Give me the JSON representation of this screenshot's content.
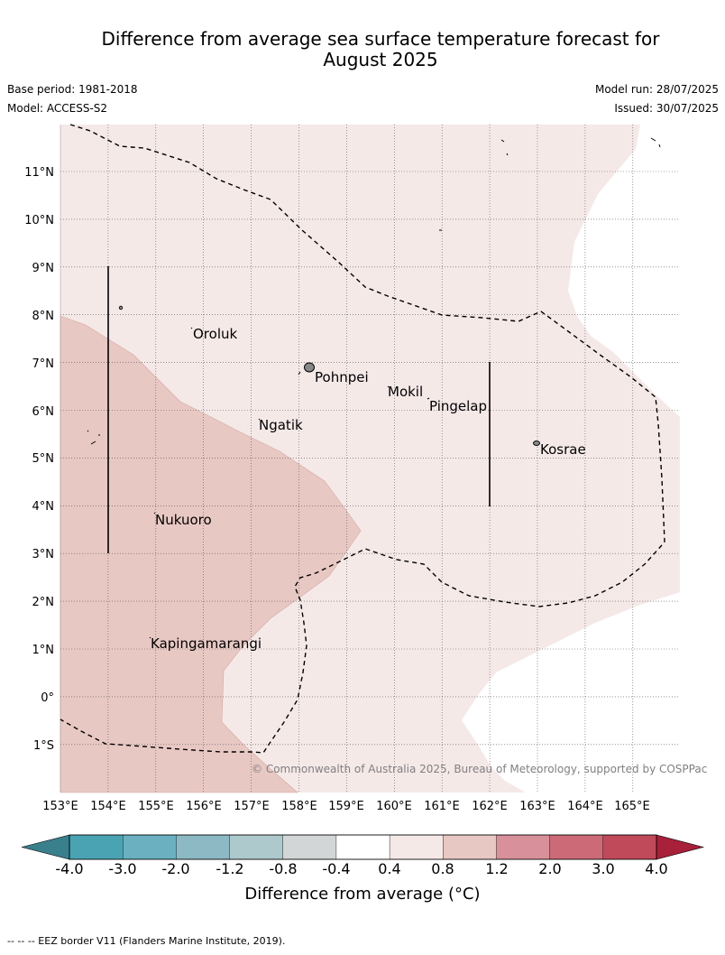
{
  "title": {
    "line1": "Difference from average sea surface temperature forecast for",
    "line2": "August 2025"
  },
  "meta": {
    "base_period": "Base period: 1981-2018",
    "model": "Model: ACCESS-S2",
    "model_run": "Model run: 28/07/2025",
    "issued": "Issued: 30/07/2025"
  },
  "map": {
    "lat_labels": [
      "11°N",
      "10°N",
      "9°N",
      "8°N",
      "7°N",
      "6°N",
      "5°N",
      "4°N",
      "3°N",
      "2°N",
      "1°N",
      "0°",
      "1°S"
    ],
    "lon_labels": [
      "153°E",
      "154°E",
      "155°E",
      "156°E",
      "157°E",
      "158°E",
      "159°E",
      "160°E",
      "161°E",
      "162°E",
      "163°E",
      "164°E",
      "165°E"
    ],
    "places": [
      {
        "name": "Oroluk"
      },
      {
        "name": "Pohnpei"
      },
      {
        "name": "Mokil"
      },
      {
        "name": "Pingelap"
      },
      {
        "name": "Ngatik"
      },
      {
        "name": "Kosrae"
      },
      {
        "name": "Nukuoro"
      },
      {
        "name": "Kapingamarangi"
      }
    ],
    "colors": {
      "anomaly_0_4_to_0_8": "#f5e9e8",
      "anomaly_0_8_to_1_2": "#e8c8c3",
      "anomaly_below_0_4": "#ffffff"
    }
  },
  "copyright": "© Commonwealth of Australia 2025, Bureau of Meteorology, supported by COSPPac",
  "colorbar": {
    "labels": [
      "-4.0",
      "-3.0",
      "-2.0",
      "-1.2",
      "-0.8",
      "-0.4",
      "0.4",
      "0.8",
      "1.2",
      "2.0",
      "3.0",
      "4.0"
    ],
    "colors": [
      "#3a7f8c",
      "#4aa3b3",
      "#6ab0c0",
      "#8cb9c4",
      "#adc9cc",
      "#d3d6d6",
      "#ffffff",
      "#f5e9e8",
      "#e8c8c3",
      "#d8909a",
      "#cc6b77",
      "#c04a59",
      "#a8203a"
    ],
    "title": "Difference from average (°C)"
  },
  "footnote": "-- -- -- EEZ border V11 (Flanders Marine Institute, 2019)."
}
